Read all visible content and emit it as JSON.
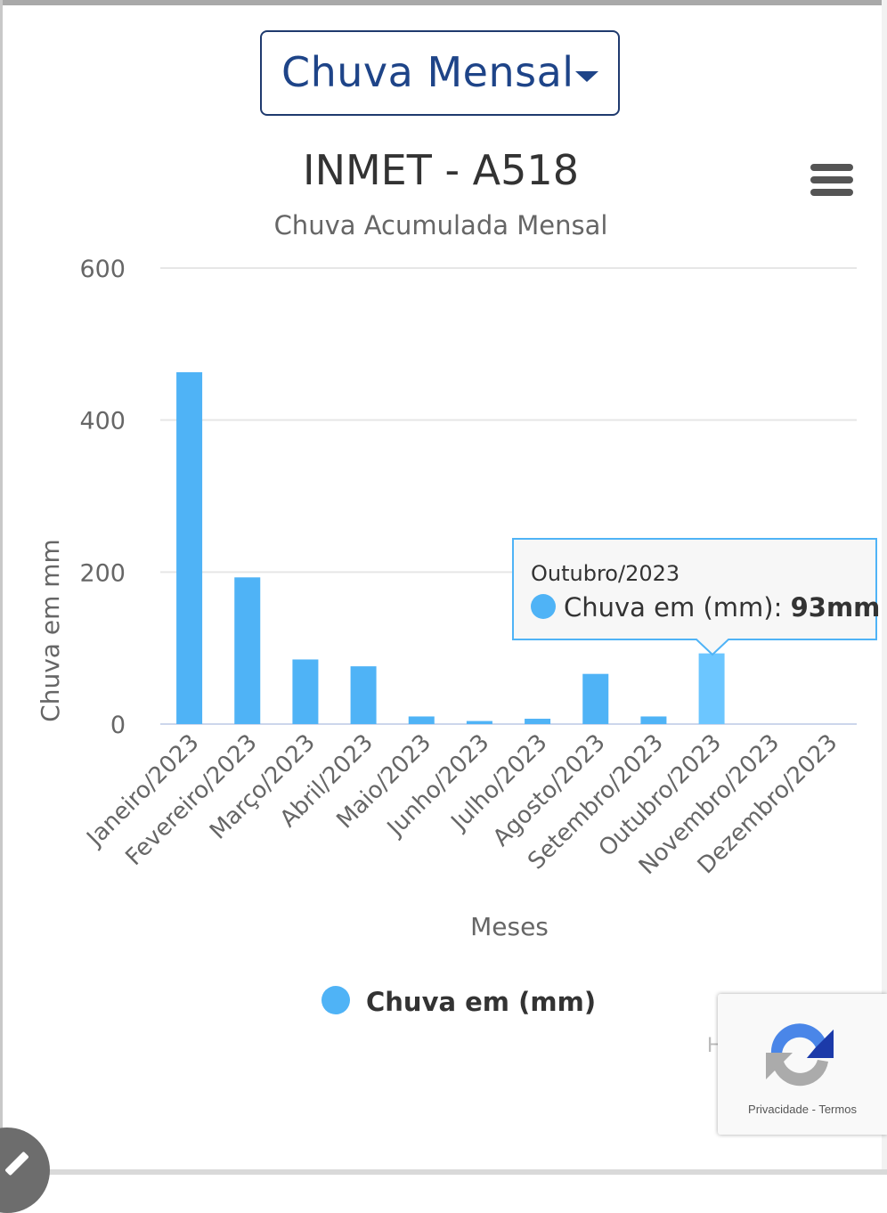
{
  "dropdown": {
    "selected": "Chuva Mensal"
  },
  "menu": {
    "icon": "hamburger-menu-icon"
  },
  "chart_data": {
    "type": "bar",
    "title": "INMET - A518",
    "subtitle": "Chuva Acumulada Mensal",
    "xlabel": "Meses",
    "ylabel": "Chuva em mm",
    "categories": [
      "Janeiro/2023",
      "Fevereiro/2023",
      "Março/2023",
      "Abril/2023",
      "Maio/2023",
      "Junho/2023",
      "Julho/2023",
      "Agosto/2023",
      "Setembro/2023",
      "Outubro/2023",
      "Novembro/2023",
      "Dezembro/2023"
    ],
    "series": [
      {
        "name": "Chuva em (mm)",
        "values": [
          463,
          193,
          85,
          76,
          10,
          4,
          7,
          66,
          10,
          93,
          0,
          0
        ]
      }
    ],
    "ylim": [
      0,
      600
    ],
    "yticks": [
      0,
      200,
      400,
      600
    ],
    "grid": true,
    "legend": "bottom-center",
    "colors": {
      "bar": "#4fb3f6",
      "bar_highlight": "#6cc6ff",
      "tooltip_border": "#4fb3f6"
    },
    "tooltip": {
      "category": "Outubro/2023",
      "series_label": "Chuva em (mm): ",
      "value_label": "93mm"
    }
  },
  "recaptcha": {
    "privacy": "Privacidade",
    "separator": "-",
    "terms": "Termos"
  },
  "clipped_text": "H"
}
